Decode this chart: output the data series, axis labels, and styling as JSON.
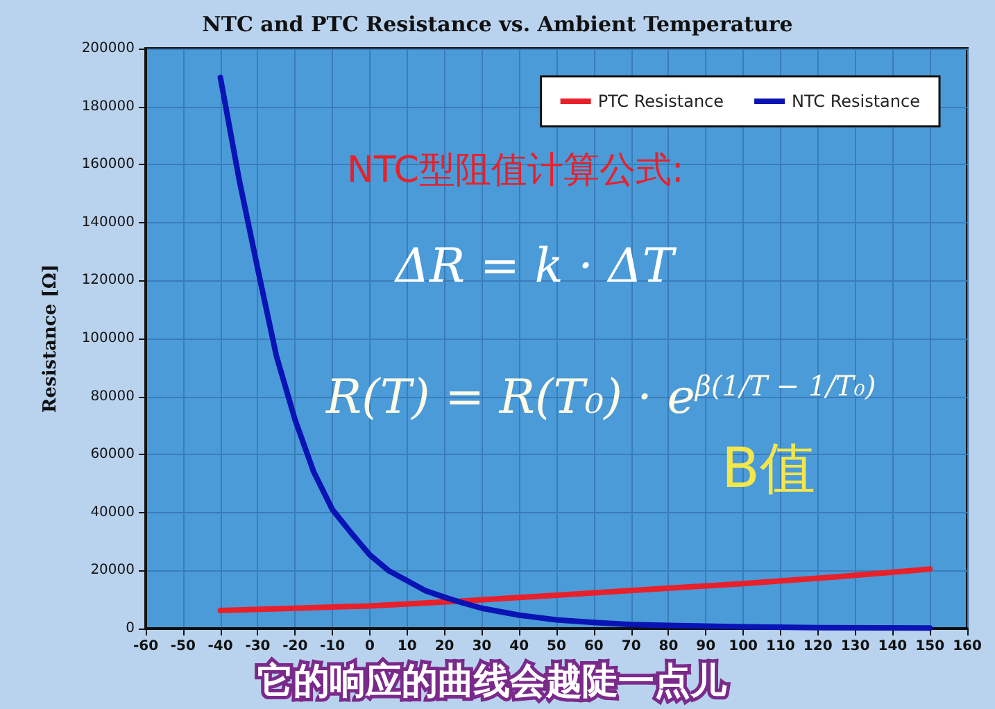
{
  "chart_data": {
    "type": "line",
    "title": "NTC and PTC Resistance vs. Ambient Temperature",
    "ylabel": "Resistance [Ω]",
    "xlim": [
      -60,
      160
    ],
    "xticks": [
      -60,
      -50,
      -40,
      -30,
      -20,
      -10,
      0,
      10,
      20,
      30,
      40,
      50,
      60,
      70,
      80,
      90,
      100,
      110,
      120,
      130,
      140,
      150,
      160
    ],
    "ylim": [
      0,
      200000
    ],
    "yticks": [
      0,
      20000,
      40000,
      60000,
      80000,
      100000,
      120000,
      140000,
      160000,
      180000,
      200000
    ],
    "grid": true,
    "legend": "top right",
    "marker": "none",
    "line_style": "solid",
    "series": [
      {
        "name": "PTC Resistance",
        "color": "#e8202a",
        "x": [
          -40,
          -20,
          0,
          25,
          50,
          75,
          100,
          125,
          150
        ],
        "values": [
          6200,
          7000,
          7800,
          9500,
          11500,
          13500,
          15500,
          17800,
          20500
        ]
      },
      {
        "name": "NTC Resistance",
        "color": "#0a14b4",
        "x": [
          -40,
          -35,
          -30,
          -25,
          -20,
          -15,
          -10,
          -5,
          0,
          5,
          10,
          15,
          20,
          25,
          30,
          40,
          50,
          60,
          70,
          80,
          100,
          120,
          150
        ],
        "values": [
          190000,
          155000,
          124000,
          94000,
          72000,
          54000,
          41000,
          33000,
          25400,
          20000,
          16500,
          13000,
          10800,
          8800,
          7000,
          4600,
          3000,
          2100,
          1400,
          1100,
          600,
          300,
          200
        ]
      }
    ],
    "annotations": [
      "NTC型阻值计算公式:",
      "ΔR = k · ΔT",
      "R(T) = R(T₀) · e$^{β(1/T − 1/T₀)}$",
      "B值",
      "它的响应的曲线会越陡一点儿"
    ]
  }
}
